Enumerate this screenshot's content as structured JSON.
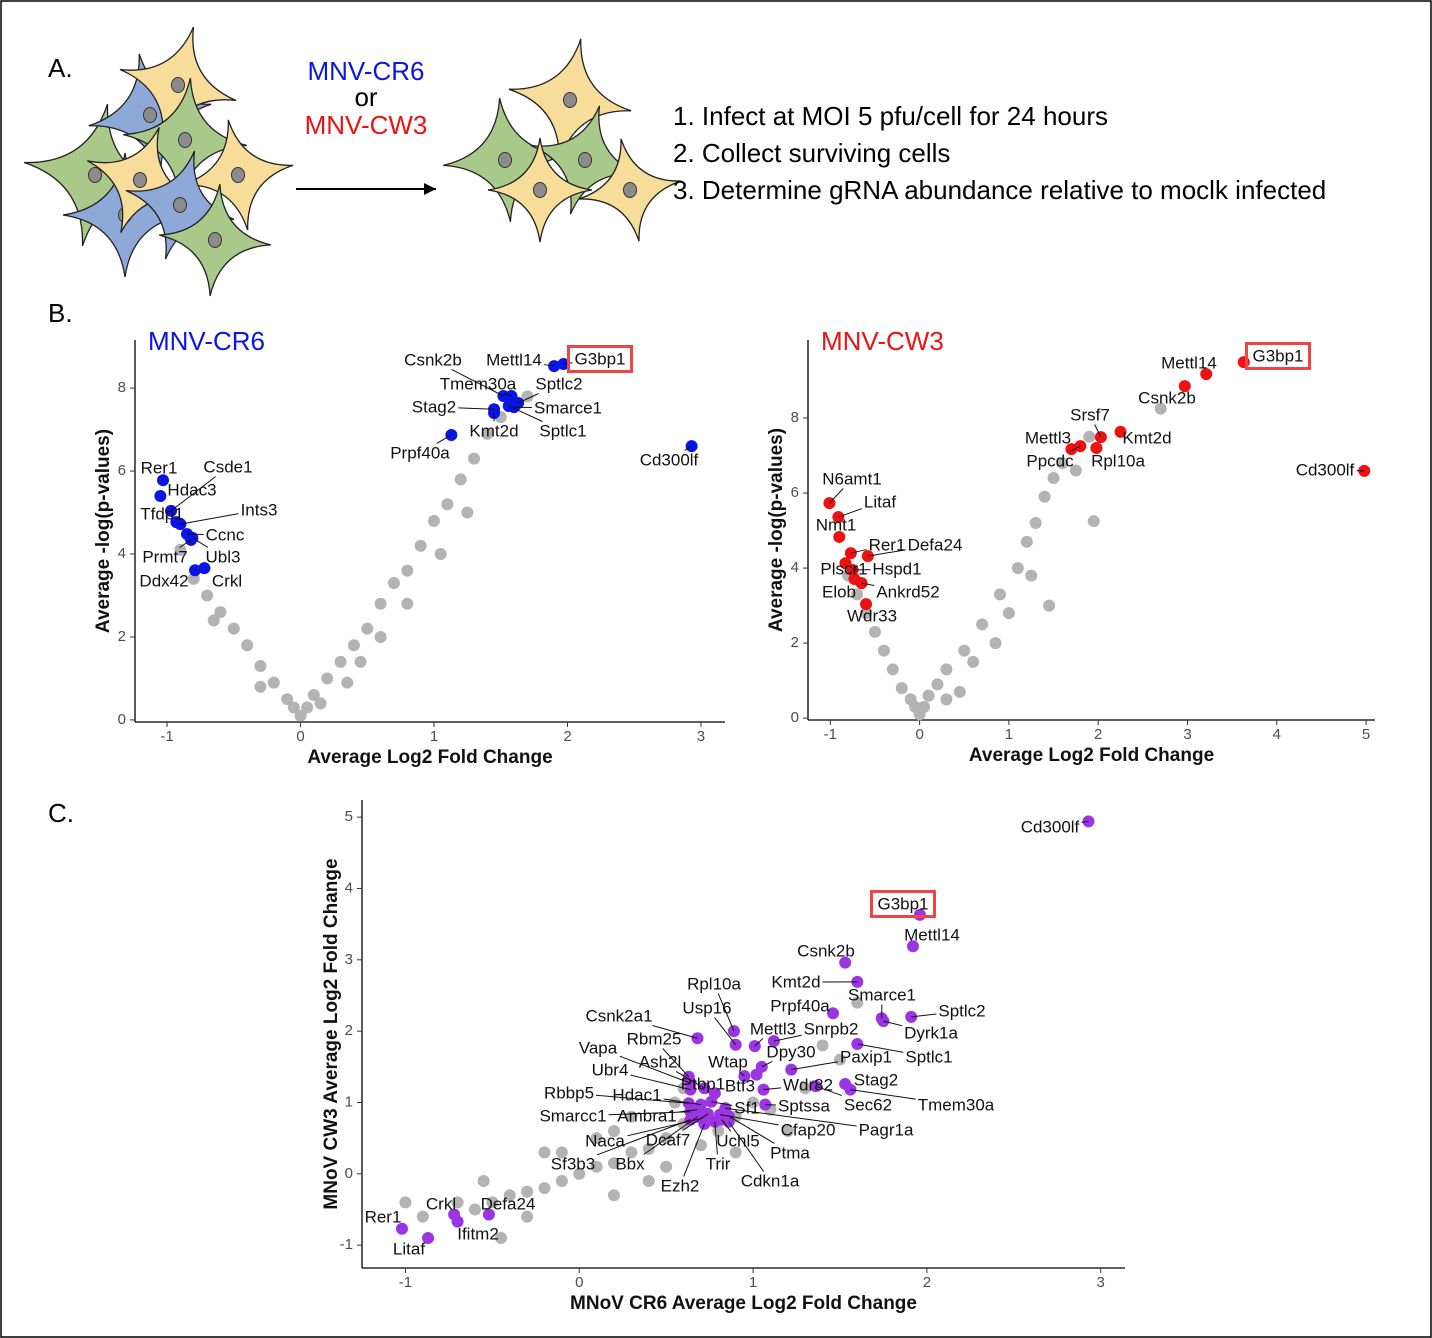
{
  "panel_a": {
    "label": "A.",
    "virus_1": "MNV-CR6",
    "conjunction": "or",
    "virus_2": "MNV-CW3",
    "virus_1_color": "#0a14e6",
    "virus_2_color": "#ee1111",
    "steps": [
      "1. Infect at MOI 5 pfu/cell for 24  hours",
      "2. Collect surviving cells",
      "3. Determine gRNA abundance relative to moclk infected"
    ]
  },
  "panel_b_label": "B.",
  "panel_c_label": "C.",
  "chart_data": [
    {
      "type": "scatter",
      "title": "MNV-CR6",
      "title_color": "#0a14e6",
      "xlabel": "Average Log2 Fold Change",
      "ylabel": "Average -log(p-values)",
      "xlim": [
        -1.24,
        3.18
      ],
      "ylim": [
        -0.05,
        9.16
      ],
      "xticks": [
        -1,
        0,
        1,
        2,
        3
      ],
      "yticks": [
        0,
        2,
        4,
        6,
        8
      ],
      "box_color": "#ef4444",
      "boxed": "G3bp1",
      "series": [
        {
          "color": "#b3b3b3",
          "x": [
            0,
            0.05,
            -0.05,
            0.1,
            -0.1,
            0.2,
            -0.2,
            0.3,
            -0.3,
            0.4,
            -0.4,
            0.5,
            -0.5,
            0.6,
            -0.6,
            0.7,
            -0.7,
            0.8,
            -0.8,
            0.9,
            -0.9,
            1,
            1.1,
            1.2,
            1.3,
            1.4,
            1.5,
            1.7,
            0.6,
            0.8,
            -0.3,
            0.35,
            1.05,
            1.25,
            -0.65,
            0.15,
            0.45
          ],
          "y": [
            0.1,
            0.3,
            0.3,
            0.6,
            0.5,
            1,
            0.9,
            1.4,
            1.3,
            1.8,
            1.8,
            2.2,
            2.2,
            2.8,
            2.6,
            3.3,
            3,
            3.6,
            3.4,
            4.2,
            4.1,
            4.8,
            5.2,
            5.8,
            6.3,
            6.9,
            7.3,
            7.8,
            2,
            2.8,
            0.8,
            0.9,
            4,
            5,
            2.4,
            0.4,
            1.4
          ]
        },
        {
          "color": "#0a14e6",
          "labels": [
            "G3bp1",
            "Mettl14",
            "Csnk2b",
            "Tmem30a",
            "Sptlc2",
            "Stag2",
            "Smarce1",
            "Kmt2d",
            "Sptlc1",
            "Prpf40a",
            "Cd300lf",
            "Rer1",
            "Csde1",
            "Hdac3",
            "Tfdp1",
            "Ints3",
            "Ccnc",
            "Prmt7",
            "Ubl3",
            "Ddx42",
            "Crkl"
          ],
          "x": [
            1.97,
            1.9,
            1.52,
            1.58,
            1.63,
            1.45,
            1.6,
            1.45,
            1.56,
            1.13,
            2.93,
            -1.03,
            -0.97,
            -1.05,
            -0.93,
            -0.9,
            -0.85,
            -0.82,
            -0.81,
            -0.79,
            -0.72
          ],
          "y": [
            8.58,
            8.53,
            7.81,
            7.81,
            7.64,
            7.49,
            7.54,
            7.4,
            7.57,
            6.87,
            6.6,
            5.78,
            5.04,
            5.4,
            4.77,
            4.72,
            4.48,
            4.34,
            4.39,
            3.61,
            3.66
          ]
        }
      ]
    },
    {
      "type": "scatter",
      "title": "MNV-CW3",
      "title_color": "#ee1111",
      "xlabel": "Average Log2 Fold Change",
      "ylabel": "Average -log(p-values)",
      "xlim": [
        -1.25,
        5.1
      ],
      "ylim": [
        -0.05,
        10.08
      ],
      "xticks": [
        -1,
        0,
        1,
        2,
        3,
        4,
        5
      ],
      "yticks": [
        0,
        2,
        4,
        6,
        8
      ],
      "box_color": "#ef4444",
      "boxed": "G3bp1",
      "series": [
        {
          "color": "#b3b3b3",
          "x": [
            0,
            0.05,
            -0.05,
            0.1,
            -0.1,
            0.2,
            -0.2,
            0.3,
            -0.3,
            0.5,
            -0.4,
            0.7,
            -0.5,
            0.9,
            -0.6,
            1.1,
            -0.7,
            1.2,
            1.3,
            1.4,
            1.5,
            1.6,
            1.9,
            2.7,
            1.95,
            0.45,
            1.0,
            0.6,
            1.25,
            1.45,
            -0.8,
            0.3,
            1.75,
            0.85
          ],
          "y": [
            0.1,
            0.3,
            0.3,
            0.6,
            0.5,
            0.9,
            0.8,
            1.3,
            1.3,
            1.8,
            1.8,
            2.5,
            2.3,
            3.3,
            2.8,
            4,
            3.3,
            4.7,
            5.2,
            5.9,
            6.4,
            6.8,
            7.5,
            8.25,
            5.25,
            0.7,
            2.8,
            1.5,
            3.8,
            3,
            3.8,
            0.5,
            6.6,
            2
          ]
        },
        {
          "color": "#ee1111",
          "labels": [
            "G3bp1",
            "Mettl14",
            "Csnk2b",
            "Srsf7",
            "Kmt2d",
            "Mettl3",
            "Ppcdc",
            "Rpl10a",
            "Cd300lf",
            "N6amt1",
            "Litaf",
            "Nmt1",
            "Rer1",
            "Defa24",
            "Plscr1",
            "Hspd1",
            "Elob",
            "Ankrd52",
            "Wdr33"
          ],
          "x": [
            3.63,
            3.21,
            2.97,
            2.03,
            2.25,
            1.7,
            1.8,
            1.98,
            4.98,
            -1.01,
            -0.91,
            -0.9,
            -0.77,
            -0.58,
            -0.83,
            -0.75,
            -0.73,
            -0.65,
            -0.6
          ],
          "y": [
            9.49,
            9.17,
            8.85,
            7.49,
            7.63,
            7.17,
            7.25,
            7.2,
            6.59,
            5.73,
            5.36,
            4.83,
            4.4,
            4.32,
            4.13,
            3.95,
            3.71,
            3.6,
            3.04
          ]
        }
      ]
    },
    {
      "type": "scatter",
      "xlabel": "MNoV CR6 Average Log2 Fold Change",
      "ylabel": "MNoV CW3 Average Log2 Fold Change",
      "xlim": [
        -1.25,
        3.14
      ],
      "ylim": [
        -1.32,
        5.24
      ],
      "xticks": [
        -1,
        0,
        1,
        2,
        3
      ],
      "yticks": [
        -1,
        0,
        1,
        2,
        3,
        4,
        5
      ],
      "box_color": "#ef4444",
      "boxed": "G3bp1",
      "series": [
        {
          "color": "#b3b3b3",
          "x": [
            0,
            0.1,
            -0.1,
            0.2,
            -0.2,
            0.3,
            -0.3,
            0.4,
            -0.4,
            0.5,
            -0.5,
            0.6,
            -0.6,
            0.3,
            0.2,
            -0.2,
            0.5,
            0.7,
            0.8,
            0.9,
            1.0,
            1.1,
            1.3,
            1.5,
            1.4,
            1.6,
            -0.7,
            -0.9,
            -1,
            -0.45,
            -0.3,
            0.1,
            0.4,
            0.6,
            0.55,
            0.2,
            -0.1,
            1.2,
            0.9,
            -0.55
          ],
          "y": [
            0,
            0.1,
            -0.1,
            0.15,
            -0.2,
            0.3,
            -0.25,
            0.35,
            -0.3,
            0.5,
            -0.4,
            0.7,
            -0.5,
            0.8,
            -0.3,
            0.3,
            0.1,
            0.4,
            0.6,
            0.8,
            1.0,
            0.9,
            1.2,
            1.6,
            1.8,
            2.4,
            -0.4,
            -0.6,
            -0.4,
            -0.9,
            -0.6,
            0.5,
            -0.1,
            1.2,
            1.0,
            0.6,
            0.3,
            0.6,
            0.3,
            -0.1
          ]
        },
        {
          "color": "#9b35e3",
          "labels": [
            "Cd300lf",
            "G3bp1",
            "Mettl14",
            "Csnk2b",
            "Kmt2d",
            "Smarce1",
            "Sptlc2",
            "Dyrk1a",
            "Sptlc1",
            "Prpf40a",
            "Rpl10a",
            "Usp16",
            "Mettl3",
            "Snrpb2",
            "Dpy30",
            "Csnk2a1",
            "Rbm25",
            "Vapa",
            "Ash2l",
            "Wtap",
            "Paxip1",
            "Ubr4",
            "Ptbp1",
            "Btf3",
            "Wdr82",
            "Stag2",
            "Rbbp5",
            "Hdac1",
            "Sf1",
            "Sec62",
            "Tmem30a",
            "Sptssa",
            "Smarcc1",
            "Ambra1",
            "Cfap20",
            "Pagr1a",
            "Naca",
            "Dcaf7",
            "Uchl5",
            "Ptma",
            "Sf3b3",
            "Bbx",
            "Trir",
            "Cdkn1a",
            "Ezh2",
            "Rer1",
            "Litaf",
            "Crkl",
            "Ifitm2",
            "Defa24"
          ],
          "x": [
            2.93,
            1.96,
            1.92,
            1.53,
            1.6,
            1.74,
            1.91,
            1.75,
            1.6,
            1.46,
            0.89,
            0.9,
            1.01,
            1.12,
            1.05,
            0.68,
            0.63,
            0.64,
            0.72,
            0.95,
            1.22,
            0.64,
            0.78,
            1.02,
            1.06,
            1.53,
            0.63,
            0.7,
            0.76,
            1.36,
            1.56,
            1.07,
            0.64,
            0.68,
            0.81,
            0.84,
            0.71,
            0.74,
            0.82,
            0.86,
            0.64,
            0.68,
            0.78,
            0.86,
            0.72,
            -1.02,
            -0.87,
            -0.72,
            -0.7,
            -0.52
          ],
          "y": [
            4.94,
            3.63,
            3.19,
            2.96,
            2.69,
            2.18,
            2.2,
            2.14,
            1.82,
            2.25,
            2.0,
            1.81,
            1.79,
            1.86,
            1.5,
            1.9,
            1.36,
            1.27,
            1.2,
            1.37,
            1.46,
            1.18,
            1.13,
            1.39,
            1.18,
            1.26,
            0.99,
            0.97,
            1.01,
            1.23,
            1.18,
            0.97,
            0.87,
            0.9,
            0.83,
            0.92,
            0.78,
            0.84,
            0.76,
            0.81,
            0.76,
            0.8,
            0.73,
            0.73,
            0.7,
            -0.77,
            -0.9,
            -0.57,
            -0.67,
            -0.57
          ]
        }
      ]
    }
  ]
}
